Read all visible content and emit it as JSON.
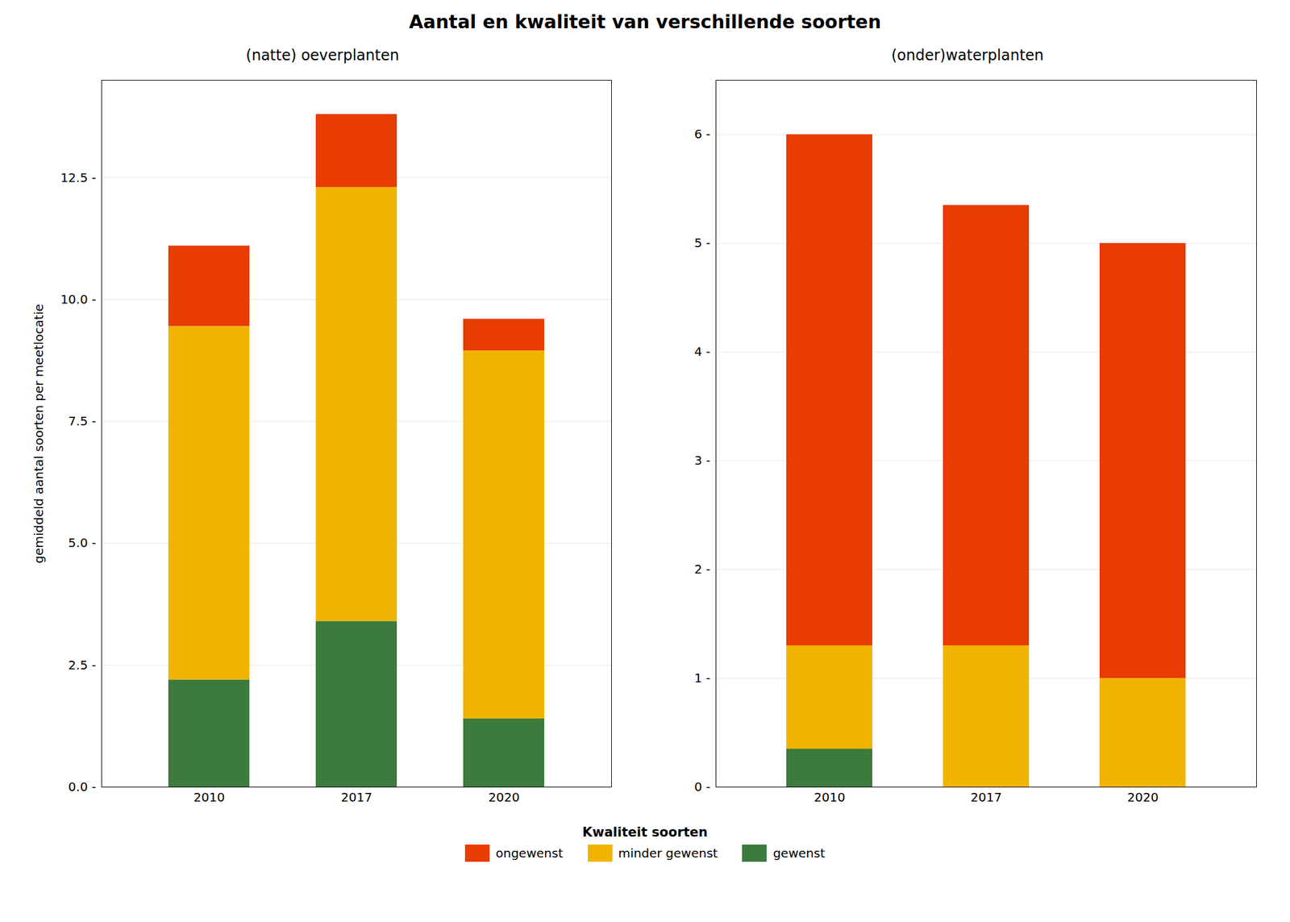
{
  "chart_data": [
    {
      "type": "bar",
      "stacked": true,
      "grid": true,
      "legend": "bottom",
      "title": "Aantal en kwaliteit van verschillende soorten",
      "subtitle": "(natte) oeverplanten",
      "y_label": "gemiddeld aantal soorten per meetlocatie",
      "legend_title": "Kwaliteit soorten",
      "categories": [
        "2010",
        "2017",
        "2020"
      ],
      "series": [
        {
          "name": "gewenst",
          "color": "#3d7a3d",
          "values": [
            2.2,
            3.4,
            1.4
          ]
        },
        {
          "name": "minder gewenst",
          "color": "#f0b400",
          "values": [
            7.25,
            8.9,
            7.55
          ]
        },
        {
          "name": "ongewenst",
          "color": "#e83c00",
          "values": [
            1.65,
            1.5,
            0.65
          ]
        }
      ],
      "ylim": [
        0,
        14.5
      ],
      "yticks": [
        {
          "value": 0.0,
          "label": "0.0 -"
        },
        {
          "value": 2.5,
          "label": "2.5 -"
        },
        {
          "value": 5.0,
          "label": "5.0 -"
        },
        {
          "value": 7.5,
          "label": "7.5 -"
        },
        {
          "value": 10.0,
          "label": "10.0 -"
        },
        {
          "value": 12.5,
          "label": "12.5 -"
        }
      ]
    },
    {
      "type": "bar",
      "stacked": true,
      "grid": true,
      "subtitle": "(onder)waterplanten",
      "categories": [
        "2010",
        "2017",
        "2020"
      ],
      "series": [
        {
          "name": "gewenst",
          "color": "#3d7a3d",
          "values": [
            0.35,
            0.0,
            0.0
          ]
        },
        {
          "name": "minder gewenst",
          "color": "#f0b400",
          "values": [
            0.95,
            1.3,
            1.0
          ]
        },
        {
          "name": "ongewenst",
          "color": "#e83c00",
          "values": [
            4.7,
            4.05,
            4.0
          ]
        }
      ],
      "ylim": [
        0,
        6.5
      ],
      "yticks": [
        {
          "value": 0,
          "label": "0 -"
        },
        {
          "value": 1,
          "label": "1 -"
        },
        {
          "value": 2,
          "label": "2 -"
        },
        {
          "value": 3,
          "label": "3 -"
        },
        {
          "value": 4,
          "label": "4 -"
        },
        {
          "value": 5,
          "label": "5 -"
        },
        {
          "value": 6,
          "label": "6 -"
        }
      ]
    }
  ]
}
